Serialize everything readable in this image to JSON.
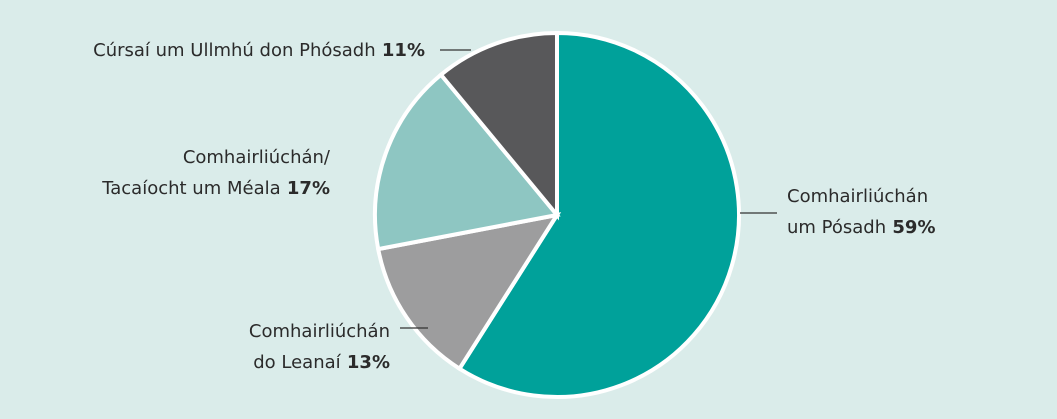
{
  "colors": {
    "background": "#daecea",
    "slice_outline": "#ffffff",
    "text": "#2b2b2b",
    "leader_line": "#333333"
  },
  "chart_data": {
    "type": "pie",
    "start_angle_deg": 0,
    "direction": "clockwise",
    "slices": [
      {
        "key": "marriage",
        "label_lines": [
          "Comhairliúchán",
          "um Pósadh"
        ],
        "percent_label": "59%",
        "value": 59,
        "color": "#00a19a"
      },
      {
        "key": "children",
        "label_lines": [
          "Comhairliúchán",
          "do Leanaí"
        ],
        "percent_label": "13%",
        "value": 13,
        "color": "#9d9d9e"
      },
      {
        "key": "bereavement",
        "label_lines": [
          "Comhairliúchán/",
          "Tacaíocht um Méala"
        ],
        "percent_label": "17%",
        "value": 17,
        "color": "#8ec6c2"
      },
      {
        "key": "premarriage",
        "label_lines": [
          "Cúrsaí um Ullmhú don Phósadh"
        ],
        "percent_label": "11%",
        "value": 11,
        "color": "#58585a"
      }
    ]
  }
}
